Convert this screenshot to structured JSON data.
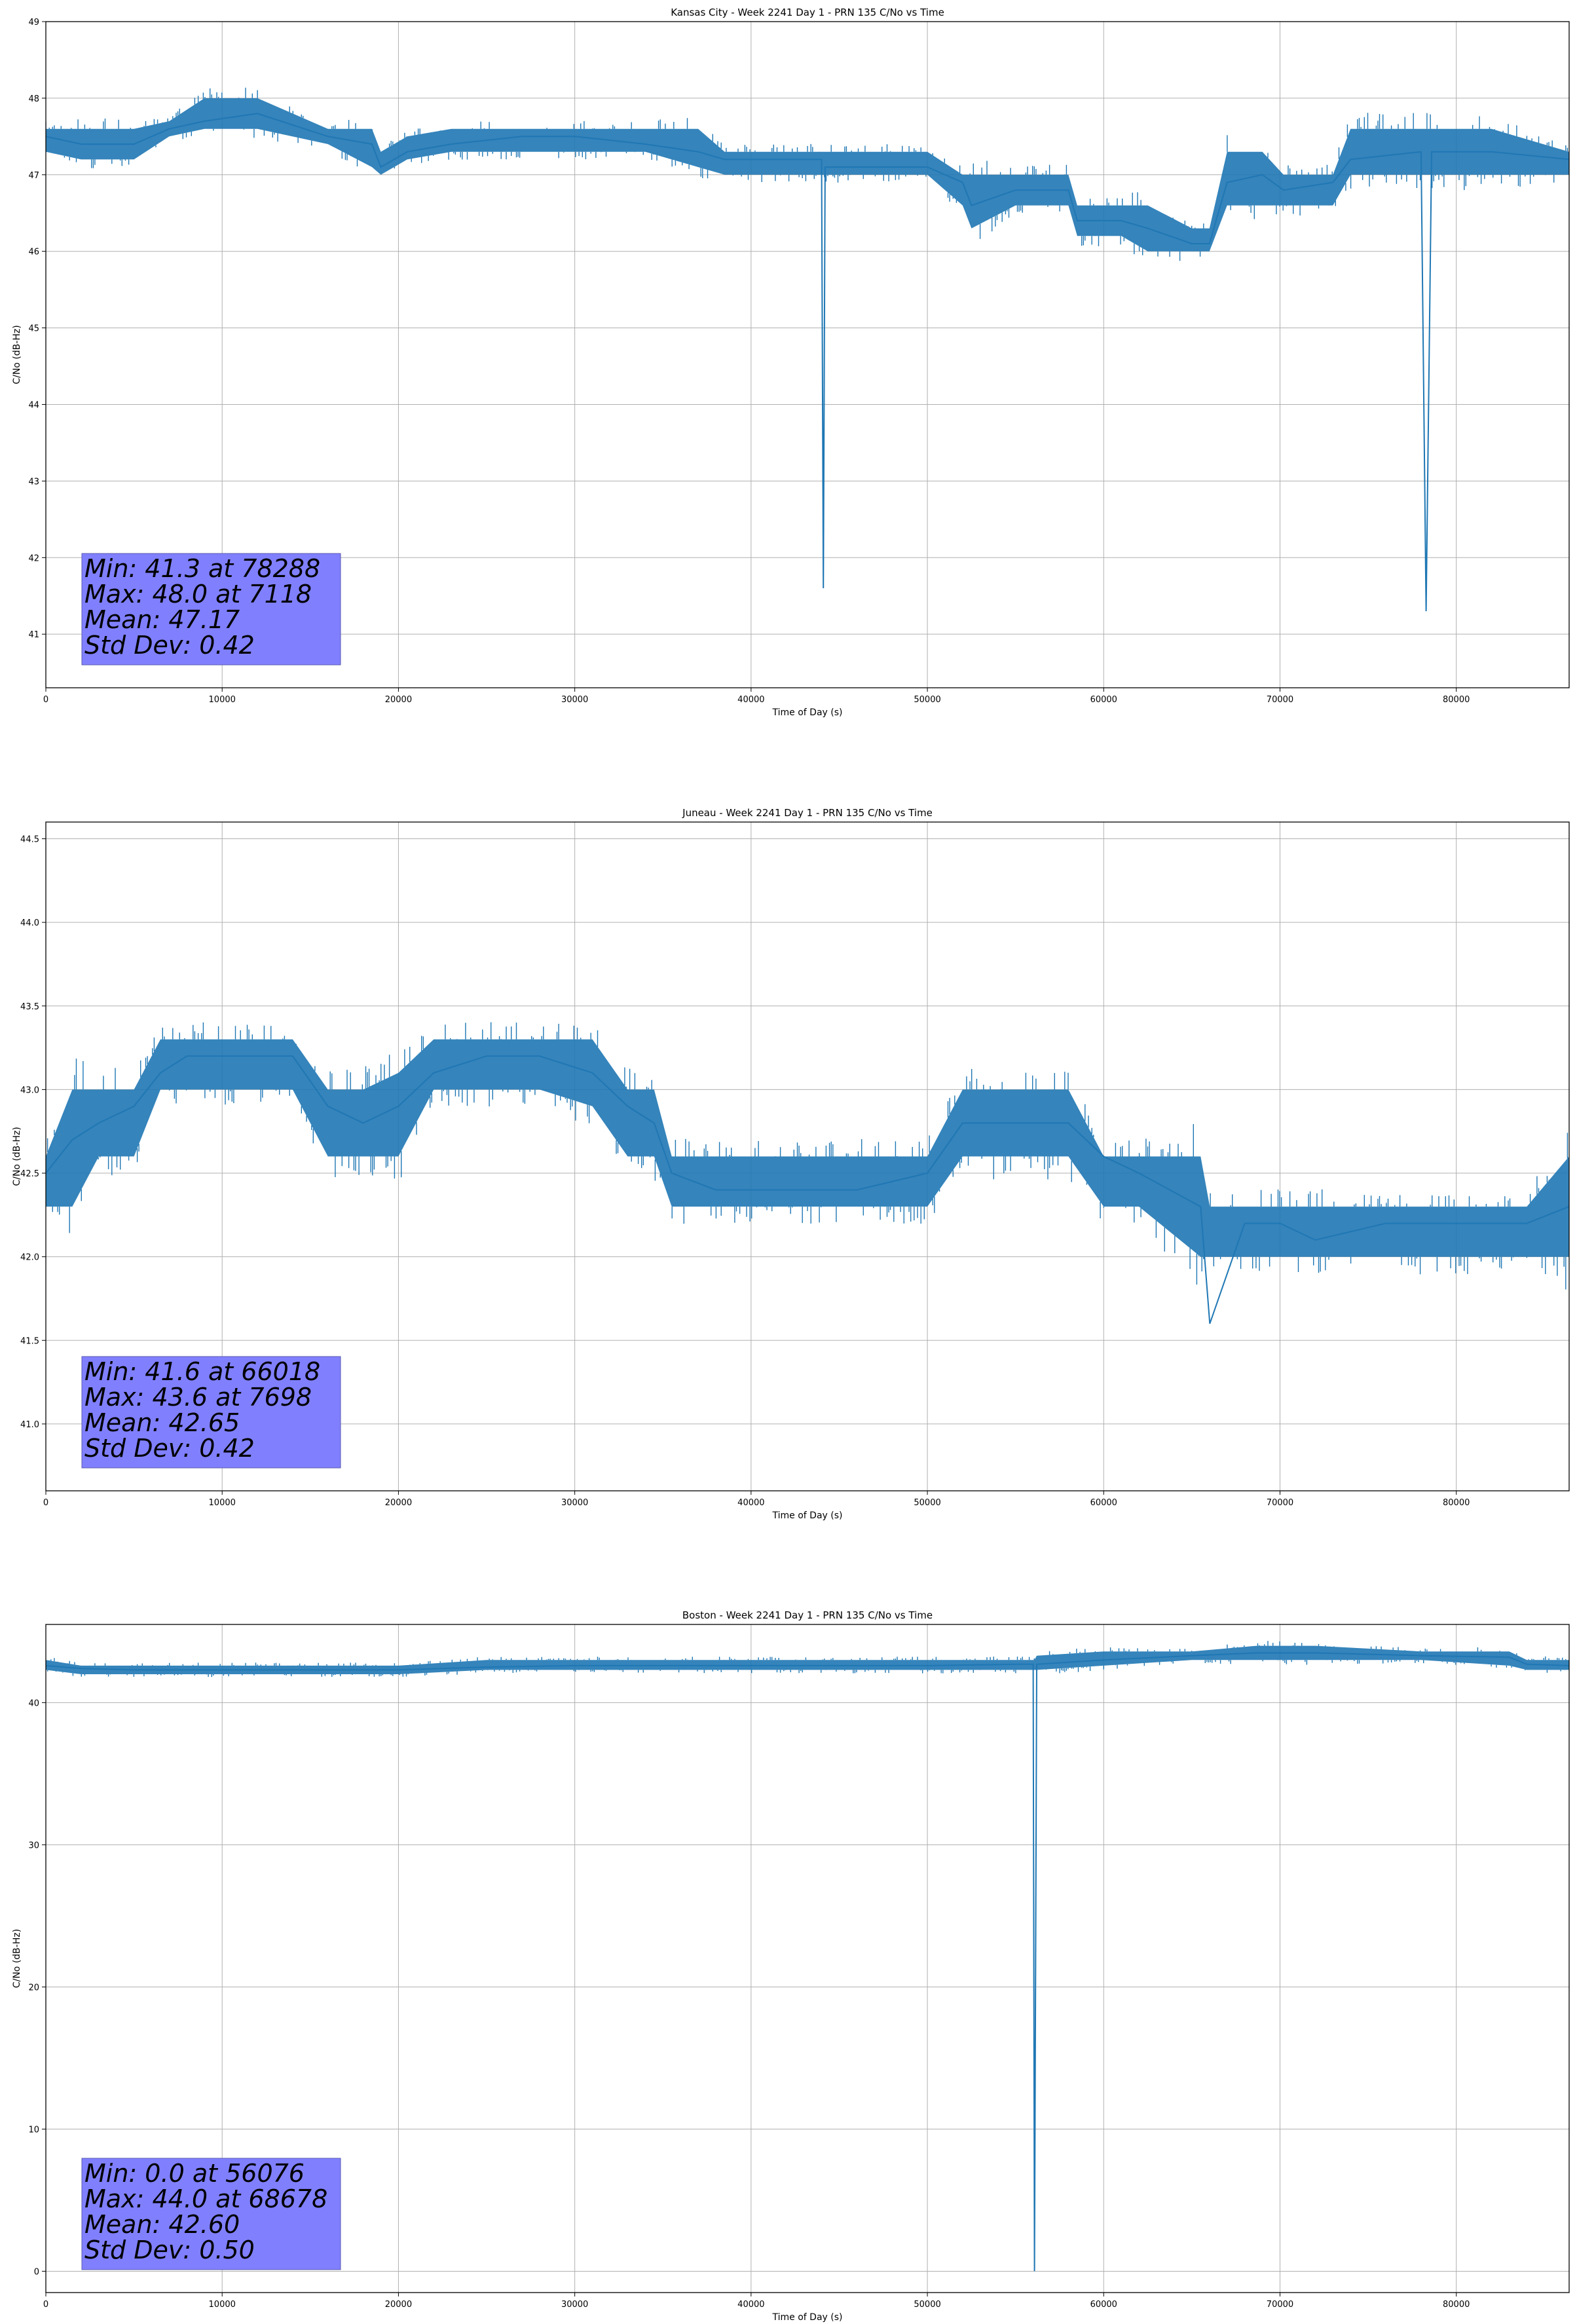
{
  "figure": {
    "background": "#ffffff",
    "line_color": "#1f77b4",
    "grid_color": "#b0b0b0",
    "stats_box_color": "#8080ff"
  },
  "chart_data": [
    {
      "type": "line",
      "title": "Kansas City - Week 2241 Day 1 - PRN 135 C/No vs Time",
      "xlabel": "Time of Day (s)",
      "ylabel": "C/No (dB-Hz)",
      "xlim": [
        0,
        86400
      ],
      "ylim": [
        40.3,
        49
      ],
      "xticks": [
        0,
        10000,
        20000,
        30000,
        40000,
        50000,
        60000,
        70000,
        80000
      ],
      "yticks": [
        41,
        42,
        43,
        44,
        45,
        46,
        47,
        48,
        49
      ],
      "ytick_labels": [
        "41",
        "42",
        "43",
        "44",
        "45",
        "46",
        "47",
        "48",
        "49"
      ],
      "grid": true,
      "series": [
        {
          "x": [
            0,
            2000,
            5000,
            7000,
            9000,
            12000,
            16000,
            18500,
            19000,
            20500,
            23000,
            27000,
            30000,
            34000,
            37000,
            38500,
            42000,
            44000,
            44100,
            44200,
            46000,
            50000,
            52000,
            52500,
            55000,
            58000,
            58500,
            61000,
            62500,
            65000,
            66000,
            67000,
            69000,
            70200,
            73000,
            74000,
            78000,
            78288,
            78600,
            82000,
            86400
          ],
          "y": [
            47.5,
            47.4,
            47.4,
            47.6,
            47.7,
            47.8,
            47.5,
            47.4,
            47.1,
            47.3,
            47.4,
            47.5,
            47.5,
            47.4,
            47.3,
            47.2,
            47.2,
            47.2,
            41.6,
            47.1,
            47.1,
            47.1,
            46.9,
            46.6,
            46.8,
            46.8,
            46.4,
            46.4,
            46.3,
            46.1,
            46.1,
            46.9,
            47.0,
            46.8,
            46.9,
            47.2,
            47.3,
            41.3,
            47.3,
            47.3,
            47.2
          ],
          "band_lo": [
            47.3,
            47.2,
            47.2,
            47.5,
            47.6,
            47.6,
            47.4,
            47.1,
            47.0,
            47.2,
            47.3,
            47.3,
            47.3,
            47.3,
            47.1,
            47.0,
            47.0,
            47.0,
            47.0,
            47.0,
            47.0,
            47.0,
            46.6,
            46.3,
            46.6,
            46.6,
            46.2,
            46.2,
            46.0,
            46.0,
            46.0,
            46.6,
            46.6,
            46.6,
            46.6,
            47.0,
            47.0,
            47.0,
            47.0,
            47.0,
            47.0
          ],
          "band_hi": [
            47.6,
            47.6,
            47.6,
            47.7,
            48.0,
            48.0,
            47.6,
            47.6,
            47.3,
            47.5,
            47.6,
            47.6,
            47.6,
            47.6,
            47.6,
            47.3,
            47.3,
            47.3,
            47.3,
            47.3,
            47.3,
            47.3,
            47.0,
            47.0,
            47.0,
            47.0,
            46.6,
            46.6,
            46.6,
            46.3,
            46.3,
            47.3,
            47.3,
            47.0,
            47.0,
            47.6,
            47.6,
            47.6,
            47.6,
            47.6,
            47.3
          ]
        }
      ],
      "annotation": {
        "lines": [
          "Min: 41.3 at 78288",
          "Max: 48.0 at 7118",
          "Mean: 47.17",
          "Std Dev: 0.42"
        ]
      }
    },
    {
      "type": "line",
      "title": "Juneau - Week 2241 Day 1 - PRN 135 C/No vs Time",
      "xlabel": "Time of Day (s)",
      "ylabel": "C/No (dB-Hz)",
      "xlim": [
        0,
        86400
      ],
      "ylim": [
        40.6,
        44.6
      ],
      "xticks": [
        0,
        10000,
        20000,
        30000,
        40000,
        50000,
        60000,
        70000,
        80000
      ],
      "yticks": [
        41.0,
        41.5,
        42.0,
        42.5,
        43.0,
        43.5,
        44.0,
        44.5
      ],
      "ytick_labels": [
        "41.0",
        "41.5",
        "42.0",
        "42.5",
        "43.0",
        "43.5",
        "44.0",
        "44.5"
      ],
      "grid": true,
      "series": [
        {
          "x": [
            0,
            1500,
            3000,
            5000,
            6500,
            8000,
            10000,
            12000,
            14000,
            16000,
            18000,
            20000,
            22000,
            25000,
            28000,
            31000,
            33000,
            34500,
            35500,
            38000,
            42000,
            46000,
            50000,
            52000,
            54000,
            56000,
            58000,
            60000,
            62000,
            65500,
            66018,
            68000,
            70000,
            72000,
            76000,
            80000,
            84000,
            86400
          ],
          "y": [
            42.5,
            42.7,
            42.8,
            42.9,
            43.1,
            43.2,
            43.2,
            43.2,
            43.2,
            42.9,
            42.8,
            42.9,
            43.1,
            43.2,
            43.2,
            43.1,
            42.9,
            42.8,
            42.5,
            42.4,
            42.4,
            42.4,
            42.5,
            42.8,
            42.8,
            42.8,
            42.8,
            42.6,
            42.5,
            42.3,
            41.6,
            42.2,
            42.2,
            42.1,
            42.2,
            42.2,
            42.2,
            42.3
          ],
          "band_lo": [
            42.3,
            42.3,
            42.6,
            42.6,
            43.0,
            43.0,
            43.0,
            43.0,
            43.0,
            42.6,
            42.6,
            42.6,
            43.0,
            43.0,
            43.0,
            42.9,
            42.6,
            42.6,
            42.3,
            42.3,
            42.3,
            42.3,
            42.3,
            42.6,
            42.6,
            42.6,
            42.6,
            42.3,
            42.3,
            42.0,
            42.0,
            42.0,
            42.0,
            42.0,
            42.0,
            42.0,
            42.0,
            42.0
          ],
          "band_hi": [
            42.6,
            43.0,
            43.0,
            43.0,
            43.3,
            43.3,
            43.3,
            43.3,
            43.3,
            43.0,
            43.0,
            43.1,
            43.3,
            43.3,
            43.3,
            43.3,
            43.0,
            43.0,
            42.6,
            42.6,
            42.6,
            42.6,
            42.6,
            43.0,
            43.0,
            43.0,
            43.0,
            42.6,
            42.6,
            42.6,
            42.3,
            42.3,
            42.3,
            42.3,
            42.3,
            42.3,
            42.3,
            42.6
          ]
        }
      ],
      "annotation": {
        "lines": [
          "Min: 41.6 at 66018",
          "Max: 43.6 at 7698",
          "Mean: 42.65",
          "Std Dev: 0.42"
        ]
      }
    },
    {
      "type": "line",
      "title": "Boston - Week 2241 Day 1 - PRN 135 C/No vs Time",
      "xlabel": "Time of Day (s)",
      "ylabel": "C/No (dB-Hz)",
      "xlim": [
        0,
        86400
      ],
      "ylim": [
        -1.5,
        45.5
      ],
      "xticks": [
        0,
        10000,
        20000,
        30000,
        40000,
        50000,
        60000,
        70000,
        80000
      ],
      "yticks": [
        0,
        10,
        20,
        30,
        40
      ],
      "ytick_labels": [
        "0",
        "10",
        "20",
        "30",
        "40"
      ],
      "grid": true,
      "series": [
        {
          "x": [
            0,
            2000,
            5000,
            10000,
            20000,
            25000,
            30000,
            40000,
            50000,
            55000,
            56000,
            56076,
            56200,
            60000,
            65000,
            68678,
            72000,
            78000,
            83000,
            84000,
            86400
          ],
          "y": [
            42.6,
            42.4,
            42.3,
            42.3,
            42.3,
            42.5,
            42.6,
            42.6,
            42.6,
            42.7,
            42.7,
            0.0,
            42.7,
            43.0,
            43.3,
            43.5,
            43.5,
            43.3,
            43.2,
            42.7,
            42.6
          ],
          "band_lo": [
            42.3,
            42.0,
            42.0,
            42.0,
            42.0,
            42.3,
            42.3,
            42.3,
            42.3,
            42.3,
            42.3,
            42.3,
            42.3,
            42.6,
            43.0,
            43.0,
            43.0,
            43.0,
            42.6,
            42.3,
            42.3
          ],
          "band_hi": [
            43.0,
            42.6,
            42.6,
            42.6,
            42.6,
            43.0,
            43.0,
            43.0,
            43.0,
            43.0,
            43.0,
            43.0,
            43.3,
            43.6,
            43.6,
            44.0,
            44.0,
            43.6,
            43.6,
            43.0,
            43.0
          ]
        }
      ],
      "annotation": {
        "lines": [
          "Min: 0.0 at 56076",
          "Max: 44.0 at 68678",
          "Mean: 42.60",
          "Std Dev: 0.50"
        ]
      }
    }
  ]
}
